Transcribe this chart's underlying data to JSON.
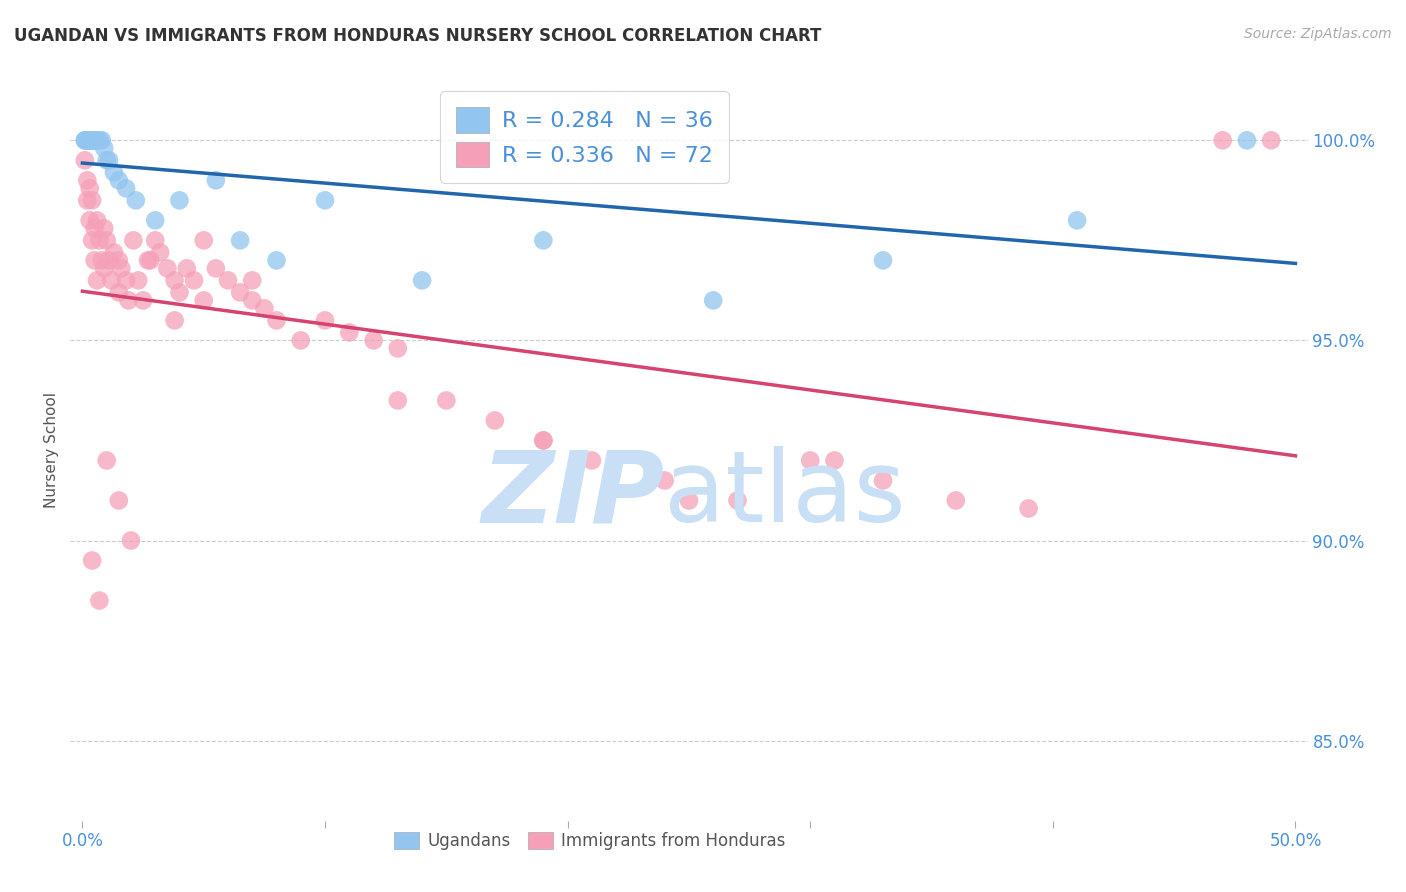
{
  "title": "UGANDAN VS IMMIGRANTS FROM HONDURAS NURSERY SCHOOL CORRELATION CHART",
  "source": "Source: ZipAtlas.com",
  "ylabel": "Nursery School",
  "ugandan_color": "#92c5f0",
  "honduras_color": "#f5a0b8",
  "ugandan_line_color": "#2166ac",
  "honduras_line_color": "#d6436e",
  "background_color": "#ffffff",
  "grid_color": "#cccccc",
  "R_ugandan": 0.284,
  "N_ugandan": 36,
  "R_honduras": 0.336,
  "N_honduras": 72,
  "xlim": [
    0.0,
    0.5
  ],
  "ylim": [
    83.0,
    101.5
  ],
  "yticks": [
    85.0,
    90.0,
    95.0,
    100.0
  ],
  "xtick_positions": [
    0.0,
    0.1,
    0.2,
    0.3,
    0.4,
    0.5
  ],
  "ugandan_x": [
    0.001,
    0.001,
    0.002,
    0.002,
    0.002,
    0.003,
    0.003,
    0.003,
    0.004,
    0.004,
    0.004,
    0.005,
    0.005,
    0.006,
    0.006,
    0.007,
    0.008,
    0.009,
    0.01,
    0.011,
    0.013,
    0.015,
    0.018,
    0.022,
    0.03,
    0.04,
    0.055,
    0.065,
    0.08,
    0.1,
    0.14,
    0.19,
    0.26,
    0.33,
    0.41,
    0.48
  ],
  "ugandan_y": [
    100.0,
    100.0,
    100.0,
    100.0,
    100.0,
    100.0,
    100.0,
    100.0,
    100.0,
    100.0,
    100.0,
    100.0,
    100.0,
    100.0,
    100.0,
    100.0,
    100.0,
    99.8,
    99.5,
    99.5,
    99.2,
    99.0,
    98.8,
    98.5,
    98.0,
    98.5,
    99.0,
    97.5,
    97.0,
    98.5,
    96.5,
    97.5,
    96.0,
    97.0,
    98.0,
    100.0
  ],
  "honduras_x": [
    0.001,
    0.002,
    0.002,
    0.003,
    0.003,
    0.004,
    0.004,
    0.005,
    0.005,
    0.006,
    0.006,
    0.007,
    0.008,
    0.009,
    0.009,
    0.01,
    0.011,
    0.012,
    0.013,
    0.015,
    0.015,
    0.016,
    0.018,
    0.019,
    0.021,
    0.023,
    0.025,
    0.027,
    0.03,
    0.032,
    0.035,
    0.038,
    0.04,
    0.043,
    0.046,
    0.05,
    0.055,
    0.06,
    0.065,
    0.07,
    0.075,
    0.08,
    0.09,
    0.1,
    0.11,
    0.12,
    0.13,
    0.15,
    0.17,
    0.19,
    0.21,
    0.24,
    0.27,
    0.3,
    0.33,
    0.36,
    0.39,
    0.19,
    0.25,
    0.31,
    0.47,
    0.49,
    0.13,
    0.07,
    0.05,
    0.038,
    0.028,
    0.02,
    0.015,
    0.01,
    0.007,
    0.004
  ],
  "honduras_y": [
    99.5,
    99.0,
    98.5,
    98.8,
    98.0,
    97.5,
    98.5,
    97.0,
    97.8,
    98.0,
    96.5,
    97.5,
    97.0,
    97.8,
    96.8,
    97.5,
    97.0,
    96.5,
    97.2,
    97.0,
    96.2,
    96.8,
    96.5,
    96.0,
    97.5,
    96.5,
    96.0,
    97.0,
    97.5,
    97.2,
    96.8,
    96.5,
    96.2,
    96.8,
    96.5,
    96.0,
    96.8,
    96.5,
    96.2,
    96.0,
    95.8,
    95.5,
    95.0,
    95.5,
    95.2,
    95.0,
    94.8,
    93.5,
    93.0,
    92.5,
    92.0,
    91.5,
    91.0,
    92.0,
    91.5,
    91.0,
    90.8,
    92.5,
    91.0,
    92.0,
    100.0,
    100.0,
    93.5,
    96.5,
    97.5,
    95.5,
    97.0,
    90.0,
    91.0,
    92.0,
    88.5,
    89.5
  ]
}
